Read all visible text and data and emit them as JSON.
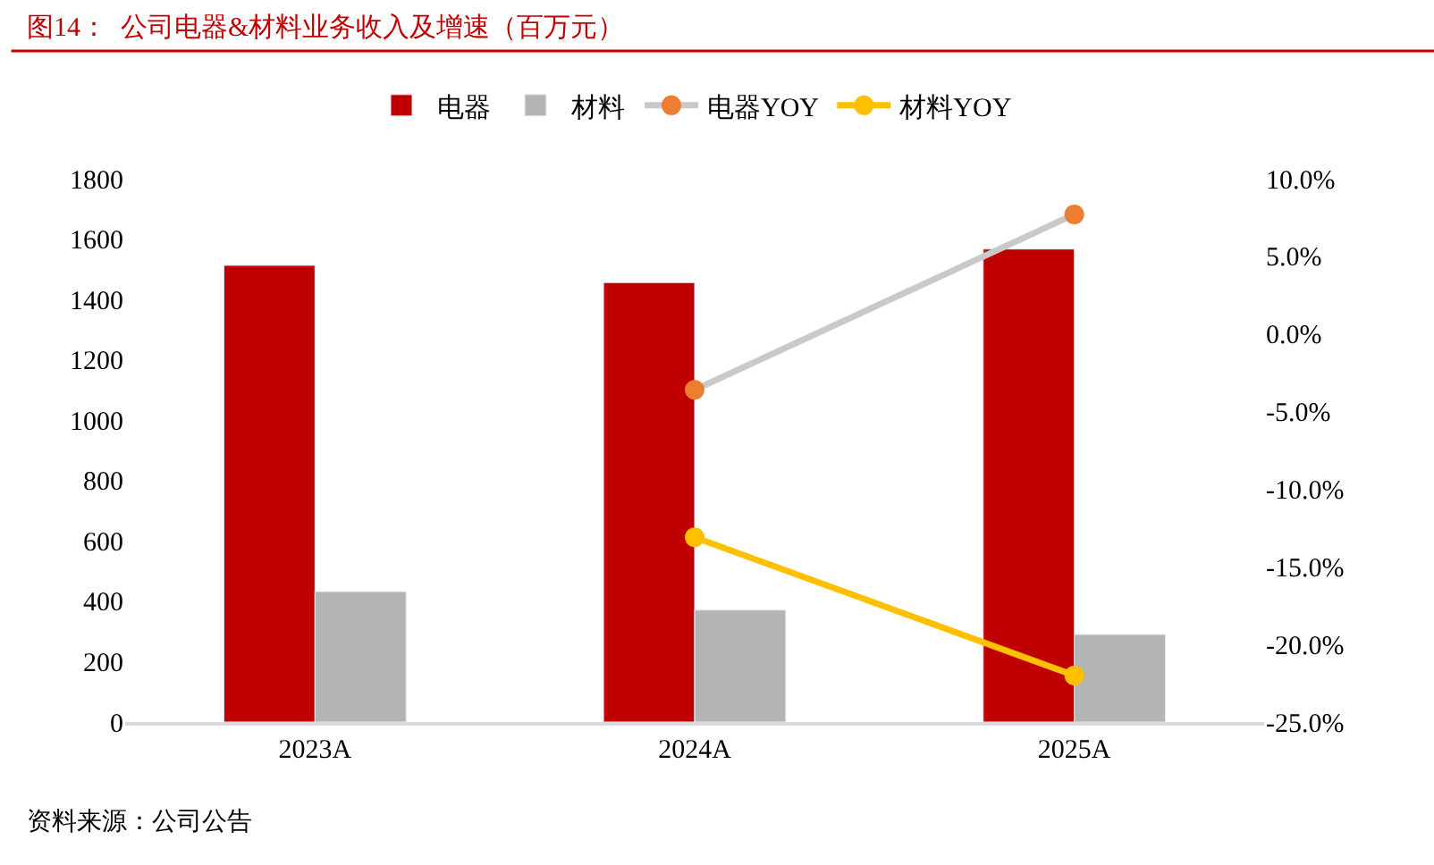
{
  "chart_data": {
    "type": "bar",
    "title": "图14：  公司电器&材料业务收入及增速（百万元）",
    "categories": [
      "2023A",
      "2024A",
      "2025A"
    ],
    "series": [
      {
        "name": "电器",
        "color": "#c00000",
        "values": [
          1513,
          1456,
          1567
        ]
      },
      {
        "name": "材料",
        "color": "#b4b4b4",
        "values": [
          432,
          371,
          290
        ]
      },
      {
        "name": "电器YOY",
        "type": "line",
        "axis": "y2",
        "color": "#c9c9c9",
        "colors": [
          "#ed7d31",
          "#ed7d31",
          "#ed7d31"
        ],
        "marker": "circle",
        "values": [
          null,
          -3.6,
          7.7
        ]
      },
      {
        "name": "材料YOY",
        "type": "line",
        "axis": "y2",
        "color": "#ffc000",
        "colors": [
          "#ffc000",
          "#ffc000",
          "#ffc000"
        ],
        "marker": "circle",
        "values": [
          null,
          -13.1,
          -22.0
        ]
      }
    ],
    "ylim": [
      0,
      1800
    ],
    "yticks": [
      0,
      200,
      400,
      600,
      800,
      1000,
      1200,
      1400,
      1600,
      1800
    ],
    "y2lim": [
      -25,
      10
    ],
    "y2ticks": [
      {
        "value": -25,
        "label": "-25.0%"
      },
      {
        "value": -20,
        "label": "-20.0%"
      },
      {
        "value": -15,
        "label": "-15.0%"
      },
      {
        "value": -10,
        "label": "-10.0%"
      },
      {
        "value": -5,
        "label": "-5.0%"
      },
      {
        "value": 0,
        "label": "0.0%"
      },
      {
        "value": 5,
        "label": "5.0%"
      },
      {
        "value": 10,
        "label": "10.0%"
      }
    ],
    "legend": "top",
    "annotations": [
      "资料来源：公司公告"
    ]
  }
}
